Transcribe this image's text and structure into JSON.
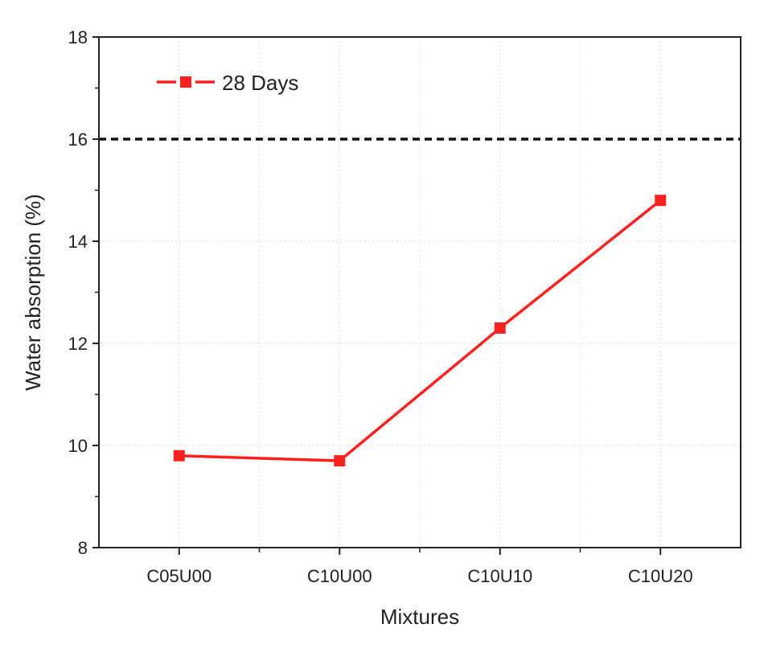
{
  "chart_data": {
    "type": "line",
    "categories": [
      "C05U00",
      "C10U00",
      "C10U10",
      "C10U20"
    ],
    "series": [
      {
        "name": "28 Days",
        "values": [
          9.8,
          9.7,
          12.3,
          14.8
        ],
        "color": "#ff2020",
        "marker": "square"
      }
    ],
    "reference_line": {
      "y": 16,
      "style": "dashed",
      "color": "#111111"
    },
    "xlabel": "Mixtures",
    "ylabel": "Water absorption (%)",
    "ylim": [
      8,
      18
    ],
    "yticks": [
      8,
      10,
      12,
      14,
      16,
      18
    ],
    "grid": true,
    "legend_position": "top-left"
  }
}
